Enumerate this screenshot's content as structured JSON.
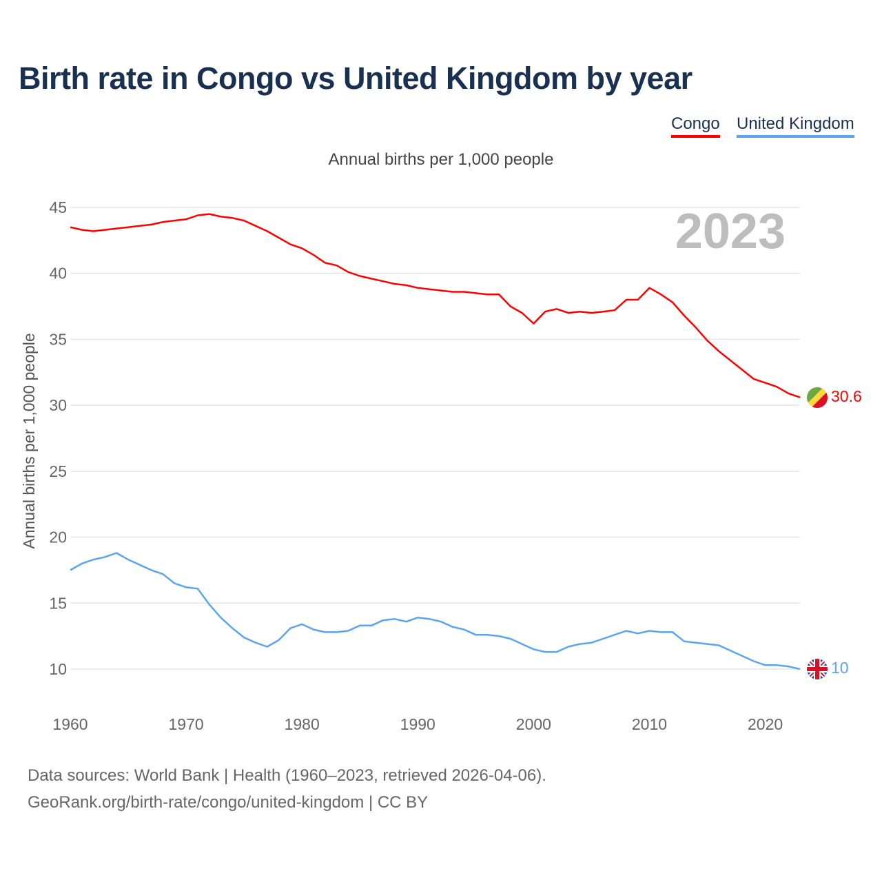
{
  "title": "Birth rate in Congo vs United Kingdom by year",
  "legend": [
    "Congo",
    "United Kingdom"
  ],
  "footer": {
    "line1": "Data sources: World Bank | Health (1960–2023, retrieved 2026-04-06).",
    "line2": "GeoRank.org/birth-rate/congo/united-kingdom | CC BY"
  },
  "chart_data": {
    "type": "line",
    "title": "Birth rate in Congo vs United Kingdom by year",
    "subtitle": "Annual births per 1,000 people",
    "ylabel": "Annual births per 1,000 people",
    "xlabel": "",
    "year_watermark": "2023",
    "xlim": [
      1960,
      2023
    ],
    "ylim": [
      7.5,
      46
    ],
    "x_ticks": [
      1960,
      1970,
      1980,
      1990,
      2000,
      2010,
      2020
    ],
    "y_ticks": [
      10,
      15,
      20,
      25,
      30,
      35,
      40,
      45
    ],
    "grid": true,
    "legend_position": "top-right",
    "x": [
      1960,
      1961,
      1962,
      1963,
      1964,
      1965,
      1966,
      1967,
      1968,
      1969,
      1970,
      1971,
      1972,
      1973,
      1974,
      1975,
      1976,
      1977,
      1978,
      1979,
      1980,
      1981,
      1982,
      1983,
      1984,
      1985,
      1986,
      1987,
      1988,
      1989,
      1990,
      1991,
      1992,
      1993,
      1994,
      1995,
      1996,
      1997,
      1998,
      1999,
      2000,
      2001,
      2002,
      2003,
      2004,
      2005,
      2006,
      2007,
      2008,
      2009,
      2010,
      2011,
      2012,
      2013,
      2014,
      2015,
      2016,
      2017,
      2018,
      2019,
      2020,
      2021,
      2022,
      2023
    ],
    "series": [
      {
        "name": "Congo",
        "color": "#ff0000",
        "end_label": "30.6",
        "flag": "congo-flag",
        "values": [
          43.5,
          43.3,
          43.2,
          43.3,
          43.4,
          43.5,
          43.6,
          43.7,
          43.9,
          44.0,
          44.1,
          44.4,
          44.5,
          44.3,
          44.2,
          44.0,
          43.6,
          43.2,
          42.7,
          42.2,
          41.9,
          41.4,
          40.8,
          40.6,
          40.1,
          39.8,
          39.6,
          39.4,
          39.2,
          39.1,
          38.9,
          38.8,
          38.7,
          38.6,
          38.6,
          38.5,
          38.4,
          38.4,
          37.5,
          37.0,
          36.2,
          37.1,
          37.3,
          37.0,
          37.1,
          37.0,
          37.1,
          37.2,
          38.0,
          38.0,
          38.9,
          38.4,
          37.8,
          36.8,
          35.9,
          34.9,
          34.1,
          33.4,
          32.7,
          32.0,
          31.7,
          31.4,
          30.9,
          30.6
        ]
      },
      {
        "name": "United Kingdom",
        "color": "#5aa5ee",
        "end_label": "10",
        "flag": "uk-flag",
        "values": [
          17.5,
          18.0,
          18.3,
          18.5,
          18.8,
          18.3,
          17.9,
          17.5,
          17.2,
          16.5,
          16.2,
          16.1,
          14.9,
          13.9,
          13.1,
          12.4,
          12.0,
          11.7,
          12.2,
          13.1,
          13.4,
          13.0,
          12.8,
          12.8,
          12.9,
          13.3,
          13.3,
          13.7,
          13.8,
          13.6,
          13.9,
          13.8,
          13.6,
          13.2,
          13.0,
          12.6,
          12.6,
          12.5,
          12.3,
          11.9,
          11.5,
          11.3,
          11.3,
          11.7,
          11.9,
          12.0,
          12.3,
          12.6,
          12.9,
          12.7,
          12.9,
          12.8,
          12.8,
          12.1,
          12.0,
          11.9,
          11.8,
          11.4,
          11.0,
          10.6,
          10.3,
          10.3,
          10.2,
          10.0
        ]
      }
    ]
  }
}
